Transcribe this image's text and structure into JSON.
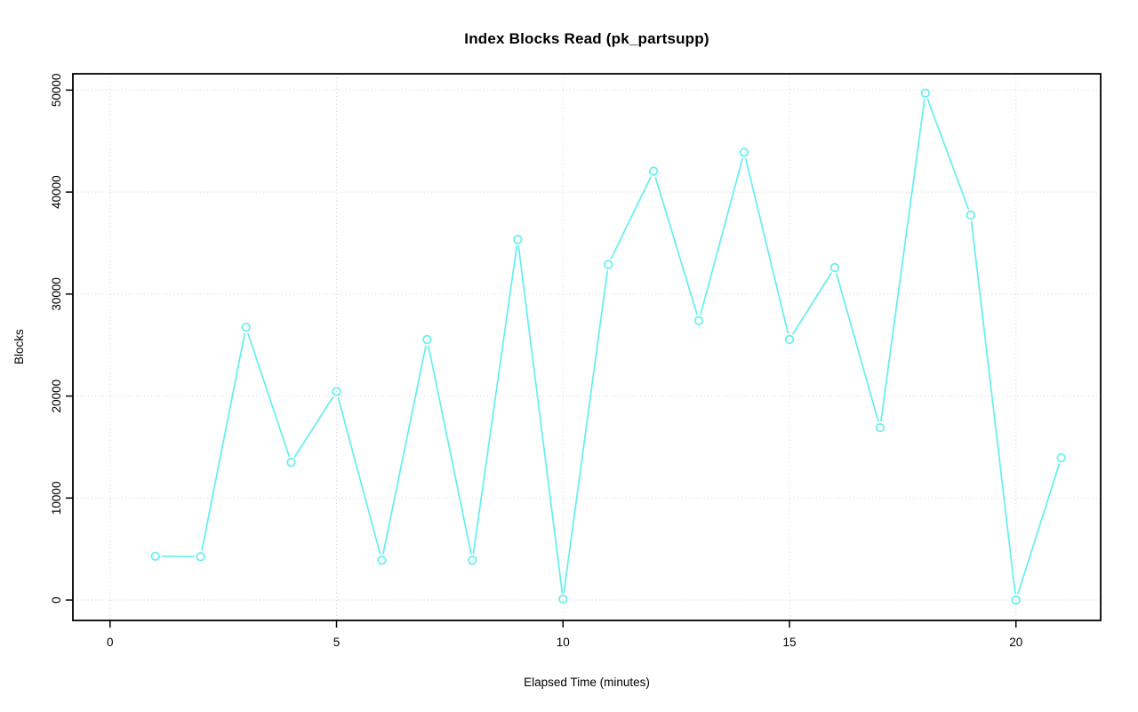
{
  "page": {
    "background_color": "#ffffff"
  },
  "chart_data": {
    "type": "line",
    "title": "Index Blocks Read (pk_partsupp)",
    "xlabel": "Elapsed Time (minutes)",
    "ylabel": "Blocks",
    "x": [
      1,
      2,
      3,
      4,
      5,
      6,
      7,
      8,
      9,
      10,
      11,
      12,
      13,
      14,
      15,
      16,
      17,
      18,
      19,
      20,
      21
    ],
    "values": [
      4300,
      4250,
      26750,
      13500,
      20450,
      3900,
      25550,
      3900,
      35350,
      100,
      32900,
      42050,
      27400,
      43900,
      25550,
      32600,
      16900,
      49700,
      37750,
      0,
      13950
    ],
    "xticks": {
      "values": [
        0,
        5,
        10,
        15,
        20
      ],
      "labels": [
        "0",
        "5",
        "10",
        "15",
        "20"
      ]
    },
    "yticks": {
      "values": [
        0,
        10000,
        20000,
        30000,
        40000,
        50000
      ],
      "labels": [
        "0",
        "10000",
        "20000",
        "30000",
        "40000",
        "50000"
      ]
    },
    "xlim": [
      -0.82,
      21.87
    ],
    "ylim": [
      -2000,
      51600
    ],
    "grid": true,
    "legend": "none",
    "style": {
      "line_color": "#63EFEF",
      "line_width": 1.7,
      "marker": "open-circle",
      "marker_radius": 4.3,
      "marker_stroke_width": 1.7,
      "marker_gap": 7.5,
      "grid_color": "#d0d0d0",
      "grid_style": "dotted",
      "box_color": "#000000",
      "tick_color": "#000000",
      "text_color": "#000000"
    }
  }
}
